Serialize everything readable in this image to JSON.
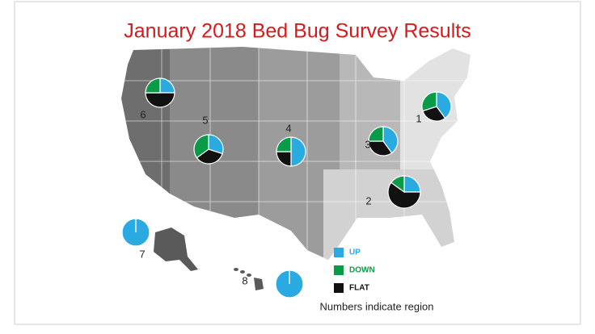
{
  "chart_data": {
    "type": "pie",
    "title": "January 2018 Bed Bug Survey Results",
    "categories": [
      "1",
      "2",
      "3",
      "4",
      "5",
      "6",
      "7",
      "8"
    ],
    "series": [
      {
        "name": "UP",
        "color": "#29abe2",
        "values": [
          40,
          25,
          40,
          50,
          30,
          25,
          100,
          100
        ]
      },
      {
        "name": "DOWN",
        "color": "#0a9b48",
        "values": [
          30,
          15,
          25,
          25,
          35,
          25,
          0,
          0
        ]
      },
      {
        "name": "FLAT",
        "color": "#111111",
        "values": [
          30,
          60,
          35,
          25,
          35,
          50,
          0,
          0
        ]
      }
    ],
    "annotation": "Numbers indicate region"
  }
}
